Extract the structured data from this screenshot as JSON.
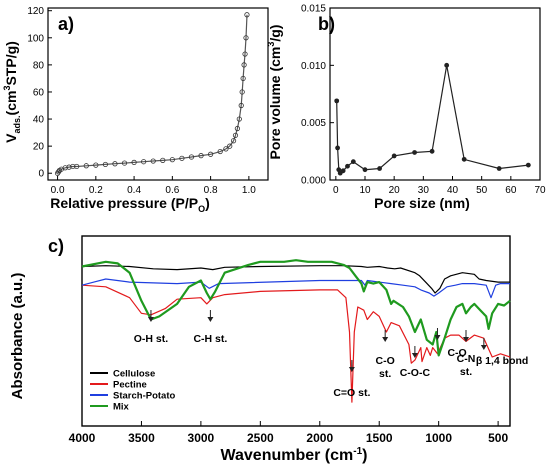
{
  "colors": {
    "cellulose": "#000000",
    "pectine": "#e31a1c",
    "starch_potato": "#1f3fe0",
    "mix": "#1f9a1f",
    "axis": "#000000",
    "marker": "#555555"
  },
  "chart_data": [
    {
      "panel_label": "a)",
      "type": "line",
      "xlabel_text": "Relative pressure (P/P",
      "xlabel_sub": "O",
      "xlabel_end": ")",
      "ylabel_pre": "V",
      "ylabel_sub": "ads.",
      "ylabel_mid": "(cm",
      "ylabel_sup": "3",
      "ylabel_end": "STP/g)",
      "xlim": [
        -0.05,
        1.1
      ],
      "ylim": [
        -5,
        122
      ],
      "xticks": [
        "0.0",
        "0.2",
        "0.4",
        "0.6",
        "0.8",
        "1.0"
      ],
      "yticks": [
        "0",
        "20",
        "40",
        "60",
        "80",
        "100",
        "120"
      ],
      "series": [
        {
          "x": [
            0.0,
            0.005,
            0.01,
            0.02,
            0.04,
            0.06,
            0.08,
            0.1,
            0.15,
            0.2,
            0.25,
            0.3,
            0.35,
            0.4,
            0.45,
            0.5,
            0.55,
            0.6,
            0.65,
            0.7,
            0.75,
            0.8,
            0.85,
            0.88,
            0.9,
            0.92,
            0.93,
            0.94,
            0.95,
            0.96,
            0.965,
            0.97,
            0.975,
            0.98,
            0.985,
            0.99
          ],
          "y": [
            0,
            1,
            2,
            3,
            4,
            4.5,
            5,
            5,
            5.5,
            6,
            6.5,
            7,
            7.5,
            8,
            8.5,
            9,
            9.5,
            10,
            11,
            12,
            13,
            14,
            16,
            18,
            20,
            24,
            28,
            33,
            40,
            50,
            60,
            70,
            80,
            88,
            100,
            117
          ]
        }
      ]
    },
    {
      "panel_label": "b)",
      "type": "line",
      "xlabel": "Pore size (nm)",
      "ylabel_pre": "Pore volume (cm",
      "ylabel_sup": "3",
      "ylabel_end": "/g)",
      "xlim": [
        -2,
        70
      ],
      "ylim": [
        0,
        0.015
      ],
      "xticks": [
        "0",
        "10",
        "20",
        "30",
        "40",
        "50",
        "60",
        "70"
      ],
      "yticks": [
        "0.000",
        "0.005",
        "0.010",
        "0.015"
      ],
      "series": [
        {
          "x": [
            0.3,
            0.6,
            1.0,
            1.5,
            2.5,
            4,
            6,
            10,
            15,
            20,
            27,
            33,
            38,
            44,
            56,
            66
          ],
          "y": [
            0.0069,
            0.0028,
            0.0009,
            0.0006,
            0.0008,
            0.0012,
            0.0016,
            0.0009,
            0.001,
            0.0021,
            0.0024,
            0.0025,
            0.01,
            0.0018,
            0.001,
            0.0013
          ]
        }
      ]
    },
    {
      "panel_label": "c)",
      "type": "line",
      "xlabel_text": "Wavenumber (cm",
      "xlabel_sup": "-1",
      "xlabel_end": ")",
      "ylabel": "Absorbance (a.u.)",
      "xlim": [
        4000,
        400
      ],
      "xticks": [
        "4000",
        "3500",
        "3000",
        "2500",
        "2000",
        "1500",
        "1000",
        "500"
      ],
      "legend": [
        "Cellulose",
        "Pectine",
        "Starch-Potato",
        "Mix"
      ],
      "legend_position": "bottom-left",
      "annotations": [
        {
          "text": "O-H st.",
          "x": 3420
        },
        {
          "text": "C-H st.",
          "x": 2920
        },
        {
          "text": "C=O st.",
          "x": 1730
        },
        {
          "text": "C-O",
          "text2": "st.",
          "x": 1450
        },
        {
          "text": "C-O-C",
          "x": 1200
        },
        {
          "text": "C-O",
          "x": 1010
        },
        {
          "text": "C-N",
          "text2": "st.",
          "x": 770
        },
        {
          "text": "β 1,4 bond",
          "x": 620
        }
      ],
      "series": [
        {
          "name": "Cellulose",
          "x": [
            4000,
            3800,
            3600,
            3400,
            3200,
            3000,
            2900,
            2800,
            2500,
            2000,
            1800,
            1650,
            1600,
            1500,
            1430,
            1370,
            1320,
            1200,
            1160,
            1110,
            1060,
            1030,
            990,
            950,
            900,
            800,
            700,
            660,
            600,
            500,
            400
          ],
          "y": [
            0.92,
            0.925,
            0.92,
            0.905,
            0.9,
            0.91,
            0.9,
            0.915,
            0.92,
            0.925,
            0.925,
            0.92,
            0.915,
            0.92,
            0.91,
            0.905,
            0.91,
            0.88,
            0.86,
            0.82,
            0.78,
            0.75,
            0.78,
            0.84,
            0.86,
            0.88,
            0.87,
            0.84,
            0.83,
            0.82,
            0.82
          ]
        },
        {
          "name": "Pectine",
          "x": [
            4000,
            3800,
            3600,
            3500,
            3420,
            3300,
            3200,
            3000,
            2950,
            2900,
            2800,
            2500,
            2000,
            1850,
            1780,
            1750,
            1730,
            1710,
            1680,
            1630,
            1600,
            1550,
            1500,
            1440,
            1400,
            1330,
            1250,
            1230,
            1200,
            1150,
            1140,
            1100,
            1070,
            1050,
            1010,
            950,
            900,
            830,
            770,
            700,
            620,
            550,
            480,
            400
          ],
          "y": [
            0.8,
            0.79,
            0.72,
            0.62,
            0.61,
            0.65,
            0.71,
            0.72,
            0.68,
            0.72,
            0.74,
            0.76,
            0.77,
            0.77,
            0.72,
            0.5,
            0.05,
            0.5,
            0.66,
            0.64,
            0.58,
            0.63,
            0.6,
            0.5,
            0.56,
            0.54,
            0.42,
            0.3,
            0.32,
            0.4,
            0.31,
            0.4,
            0.35,
            0.4,
            0.36,
            0.46,
            0.48,
            0.48,
            0.44,
            0.48,
            0.46,
            0.34,
            0.36,
            0.34
          ]
        },
        {
          "name": "Starch-Potato",
          "x": [
            4000,
            3900,
            3800,
            3600,
            3200,
            3000,
            2930,
            2850,
            2000,
            1800,
            1650,
            1620,
            1600,
            1500,
            1400,
            1300,
            1200,
            1150,
            1080,
            1040,
            1000,
            930,
            860,
            800,
            700,
            600,
            560,
            520,
            480,
            400
          ],
          "y": [
            0.8,
            0.82,
            0.84,
            0.82,
            0.81,
            0.82,
            0.78,
            0.81,
            0.83,
            0.83,
            0.83,
            0.8,
            0.83,
            0.82,
            0.81,
            0.8,
            0.79,
            0.77,
            0.75,
            0.73,
            0.75,
            0.79,
            0.8,
            0.81,
            0.81,
            0.8,
            0.72,
            0.8,
            0.81,
            0.81
          ]
        },
        {
          "name": "Mix",
          "x": [
            4000,
            3800,
            3700,
            3600,
            3500,
            3420,
            3350,
            3200,
            3100,
            3000,
            2950,
            2920,
            2880,
            2800,
            2600,
            2500,
            2300,
            2200,
            2100,
            2000,
            1900,
            1800,
            1750,
            1700,
            1650,
            1630,
            1600,
            1550,
            1500,
            1440,
            1400,
            1380,
            1300,
            1250,
            1200,
            1150,
            1100,
            1050,
            1020,
            1000,
            950,
            900,
            850,
            800,
            770,
            730,
            700,
            650,
            600,
            580,
            550,
            500,
            450,
            400
          ],
          "y": [
            0.92,
            0.95,
            0.94,
            0.88,
            0.7,
            0.58,
            0.6,
            0.68,
            0.79,
            0.83,
            0.75,
            0.71,
            0.76,
            0.88,
            0.93,
            0.95,
            0.95,
            0.96,
            0.95,
            0.95,
            0.95,
            0.93,
            0.91,
            0.86,
            0.81,
            0.76,
            0.82,
            0.81,
            0.82,
            0.77,
            0.68,
            0.7,
            0.66,
            0.6,
            0.5,
            0.58,
            0.45,
            0.42,
            0.5,
            0.35,
            0.46,
            0.58,
            0.66,
            0.68,
            0.62,
            0.66,
            0.68,
            0.64,
            0.6,
            0.52,
            0.62,
            0.68,
            0.67,
            0.7
          ]
        }
      ]
    }
  ]
}
